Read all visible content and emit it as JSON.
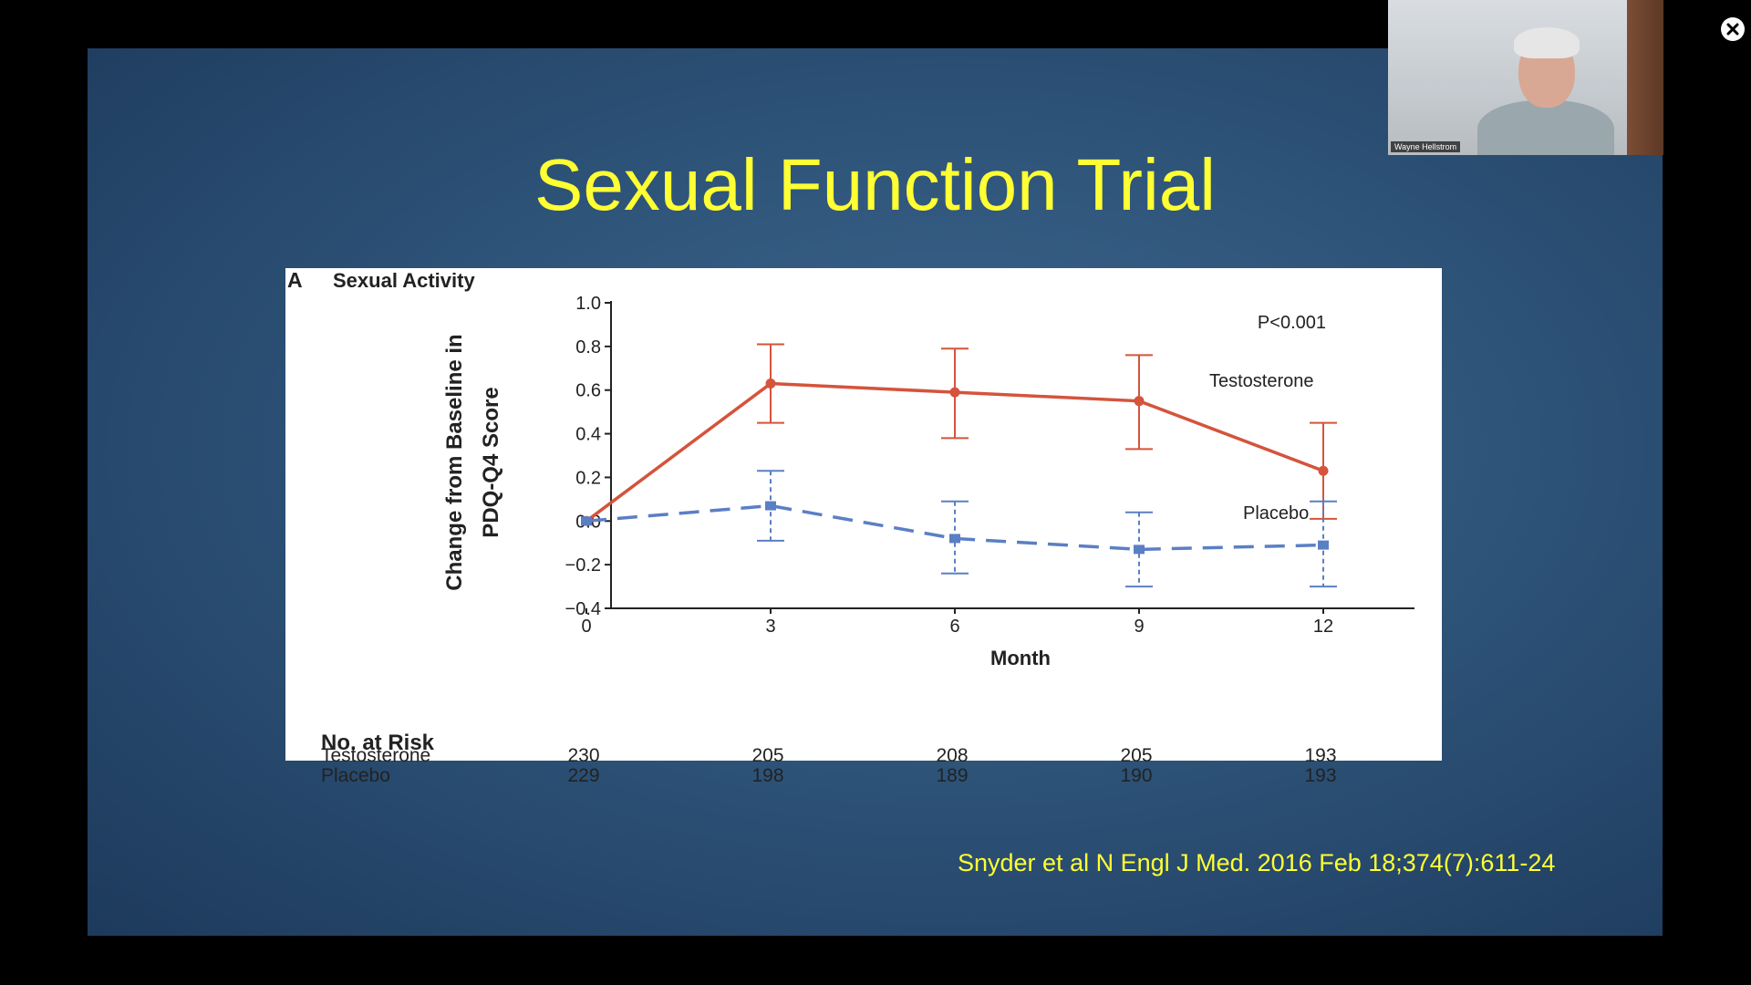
{
  "slide": {
    "title": "Sexual Function Trial",
    "citation": "Snyder et al N Engl J Med. 2016 Feb 18;374(7):611-24"
  },
  "video": {
    "participant_name": "Wayne Hellstrom",
    "close_icon": "close-icon"
  },
  "chart_data": {
    "type": "line",
    "panel_label": "A",
    "title": "Sexual Activity",
    "xlabel": "Month",
    "ylabel": "Change from Baseline in PDQ-Q4 Score",
    "ylabel_lines": [
      "Change from Baseline in",
      "PDQ-Q4 Score"
    ],
    "x": [
      0,
      3,
      6,
      9,
      12
    ],
    "x_ticks": [
      "0",
      "3",
      "6",
      "9",
      "12"
    ],
    "y_ticks": [
      "1.0",
      "0.8",
      "0.6",
      "0.4",
      "0.2",
      "0.0",
      "−0.2",
      "−0.4"
    ],
    "ylim": [
      -0.4,
      1.0
    ],
    "annotation": "P<0.001",
    "series": [
      {
        "name": "Testosterone",
        "color": "#d4543c",
        "values": [
          0.0,
          0.63,
          0.59,
          0.55,
          0.23
        ],
        "ci_low": [
          0.0,
          0.45,
          0.38,
          0.33,
          0.01
        ],
        "ci_high": [
          0.0,
          0.81,
          0.79,
          0.76,
          0.45
        ]
      },
      {
        "name": "Placebo",
        "color": "#5b7fc4",
        "values": [
          0.0,
          0.07,
          -0.08,
          -0.13,
          -0.11
        ],
        "ci_low": [
          0.0,
          -0.09,
          -0.24,
          -0.3,
          -0.3
        ],
        "ci_high": [
          0.0,
          0.23,
          0.09,
          0.04,
          0.09
        ]
      }
    ],
    "risk_table": {
      "title": "No. at Risk",
      "rows": [
        {
          "label": "Testosterone",
          "values": [
            "230",
            "205",
            "208",
            "205",
            "193"
          ]
        },
        {
          "label": "Placebo",
          "values": [
            "229",
            "198",
            "189",
            "190",
            "193"
          ]
        }
      ]
    }
  }
}
